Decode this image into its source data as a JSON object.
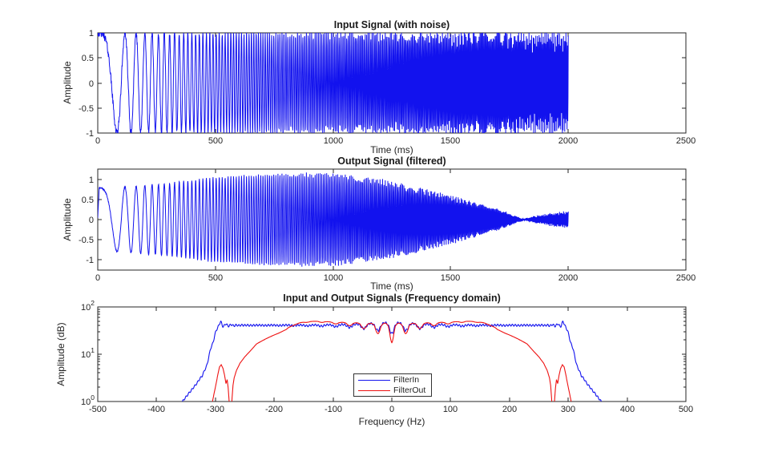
{
  "figure": {
    "background": "#ffffff",
    "axis_color": "#242424",
    "text_color": "#242424",
    "blue": "#1212ee",
    "red": "#ee1212"
  },
  "chart_data": [
    {
      "id": "input-time",
      "type": "line",
      "title": "Input Signal (with noise)",
      "xlabel": "Time (ms)",
      "ylabel": "Amplitude",
      "xlim": [
        0,
        2500
      ],
      "ylim": [
        -1,
        1
      ],
      "xticks": [
        0,
        500,
        1000,
        1500,
        2000,
        2500
      ],
      "yticks": [
        -1,
        -0.5,
        0,
        0.5,
        1
      ],
      "grid": false,
      "series": [
        {
          "name": "input",
          "color": "#1212ee",
          "signal": {
            "kind": "linear-chirp",
            "t_start_ms": 0,
            "t_end_ms": 2000,
            "dt_ms": 1,
            "f0_hz": 0,
            "f1_hz": 300,
            "amplitude": 1,
            "noise_amplitude": 0.08,
            "clip": [
              -1,
              1
            ],
            "seed": 42
          }
        }
      ]
    },
    {
      "id": "output-time",
      "type": "line",
      "title": "Output Signal (filtered)",
      "xlabel": "Time (ms)",
      "ylabel": "Amplitude",
      "xlim": [
        0,
        2500
      ],
      "ylim": [
        -1.25,
        1.25
      ],
      "xticks": [
        0,
        500,
        1000,
        1500,
        2000,
        2500
      ],
      "yticks": [
        -1,
        -0.5,
        0,
        0.5,
        1
      ],
      "grid": false,
      "series": [
        {
          "name": "output",
          "color": "#1212ee",
          "signal": {
            "kind": "linear-chirp",
            "t_start_ms": 0,
            "t_end_ms": 2000,
            "dt_ms": 1,
            "f0_hz": 0,
            "f1_hz": 300,
            "noise_amplitude": 0.02,
            "seed": 7,
            "envelope_ms_amp": [
              [
                0,
                0.05
              ],
              [
                6,
                0.78
              ],
              [
                60,
                0.78
              ],
              [
                150,
                0.82
              ],
              [
                300,
                0.9
              ],
              [
                500,
                1.05
              ],
              [
                700,
                1.12
              ],
              [
                900,
                1.15
              ],
              [
                1050,
                1.12
              ],
              [
                1200,
                1.0
              ],
              [
                1350,
                0.82
              ],
              [
                1500,
                0.6
              ],
              [
                1620,
                0.4
              ],
              [
                1720,
                0.22
              ],
              [
                1780,
                0.08
              ],
              [
                1810,
                0.01
              ],
              [
                1860,
                0.08
              ],
              [
                1930,
                0.16
              ],
              [
                2000,
                0.2
              ]
            ]
          }
        }
      ]
    },
    {
      "id": "frequency-domain",
      "type": "line",
      "y_scale": "log10",
      "title": "Input and Output Signals (Frequency domain)",
      "xlabel": "Frequency (Hz)",
      "ylabel": "Amplitude (dB)",
      "xlim": [
        -500,
        500
      ],
      "y_decades": [
        0,
        2
      ],
      "xticks": [
        -500,
        -400,
        -300,
        -200,
        -100,
        0,
        100,
        200,
        300,
        400,
        500
      ],
      "ytick_exponents": [
        0,
        1,
        2
      ],
      "grid": false,
      "legend": {
        "position": "south",
        "entries": [
          {
            "label": "FilterIn",
            "color": "#1212ee"
          },
          {
            "label": "FilterOut",
            "color": "#ee1212"
          }
        ]
      },
      "series": [
        {
          "name": "FilterIn",
          "color": "#1212ee",
          "symmetric": true,
          "df_hz": 0.4,
          "base_points": [
            [
              0,
              41
            ],
            [
              278,
              41
            ],
            [
              284,
              41.5
            ],
            [
              288,
              42
            ],
            [
              291,
              45
            ],
            [
              295,
              42
            ],
            [
              297,
              36
            ],
            [
              302,
              22
            ],
            [
              308,
              13
            ],
            [
              315,
              5.6
            ],
            [
              322,
              3.6
            ],
            [
              333,
              2.3
            ],
            [
              345,
              1.5
            ],
            [
              356,
              1.0
            ],
            [
              362,
              0.45
            ],
            [
              368,
              0.1
            ],
            [
              500,
              0.03
            ]
          ],
          "ripples": [
            {
              "center": 0,
              "amp": 0.34,
              "pos_scale": 0.5,
              "decay": 58,
              "period": 24,
              "phase": 3.14159
            },
            {
              "center": 0,
              "amp": 0.045,
              "pos_scale": 1,
              "decay": 100000,
              "period": 5,
              "phase": 0
            },
            {
              "center": 291,
              "amp": 0.1,
              "pos_scale": 1,
              "decay": 14,
              "period": 9,
              "phase": 0
            }
          ]
        },
        {
          "name": "FilterOut",
          "color": "#ee1212",
          "symmetric": true,
          "df_hz": 0.4,
          "base_points": [
            [
              0,
              39
            ],
            [
              20,
              40
            ],
            [
              45,
              42.5
            ],
            [
              70,
              45
            ],
            [
              100,
              47
            ],
            [
              125,
              49.5
            ],
            [
              140,
              49
            ],
            [
              155,
              46.5
            ],
            [
              168,
              41
            ],
            [
              175,
              37
            ],
            [
              180,
              33
            ],
            [
              190,
              29
            ],
            [
              200,
              25.5
            ],
            [
              215,
              21
            ],
            [
              230,
              16.5
            ],
            [
              240,
              12
            ],
            [
              250,
              8.8
            ],
            [
              258,
              6.5
            ],
            [
              264,
              4.6
            ],
            [
              268,
              3.2
            ],
            [
              270,
              2.2
            ],
            [
              272,
              1.0
            ],
            [
              274,
              0.55
            ],
            [
              276,
              0.8
            ],
            [
              278,
              1.8
            ],
            [
              280,
              2.9
            ],
            [
              282,
              2.4
            ],
            [
              284,
              3.4
            ],
            [
              287,
              5.0
            ],
            [
              290,
              6.0
            ],
            [
              293,
              5.4
            ],
            [
              296,
              3.6
            ],
            [
              300,
              2.0
            ],
            [
              305,
              1.0
            ],
            [
              309,
              0.5
            ],
            [
              313,
              0.15
            ],
            [
              500,
              0.05
            ]
          ],
          "ripples": [
            {
              "center": 0,
              "amp": 0.55,
              "pos_scale": 0.35,
              "decay": 45,
              "period": 24,
              "phase": 3.14159
            }
          ]
        }
      ]
    }
  ]
}
